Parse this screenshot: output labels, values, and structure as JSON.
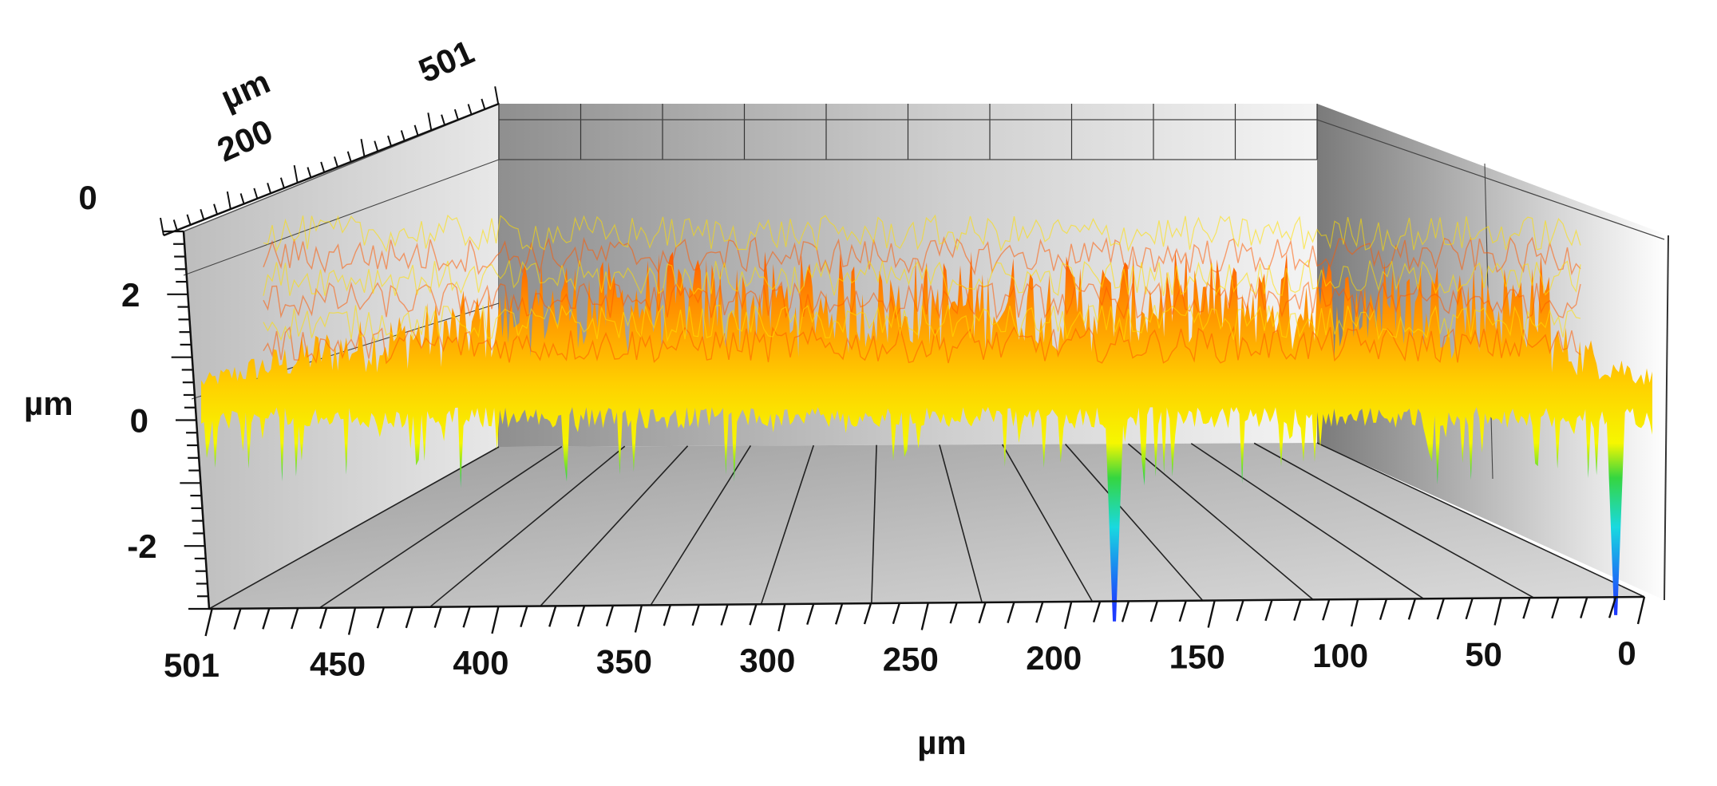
{
  "chart_data": {
    "type": "surface-3d",
    "title": "",
    "x_axis": {
      "label": "µm",
      "range": [
        0,
        501
      ],
      "tick_labels": [
        "501",
        "450",
        "400",
        "350",
        "300",
        "250",
        "200",
        "150",
        "100",
        "50",
        "0"
      ],
      "tick_values": [
        501,
        450,
        400,
        350,
        300,
        250,
        200,
        150,
        100,
        50,
        0
      ]
    },
    "y_axis": {
      "label": "µm",
      "range": [
        0,
        501
      ],
      "tick_labels": [
        "0",
        "200",
        "501"
      ],
      "tick_values": [
        0,
        200,
        501
      ]
    },
    "z_axis": {
      "label": "µm",
      "range": [
        -3,
        3
      ],
      "tick_labels": [
        "2",
        "0",
        "-2"
      ],
      "tick_values": [
        2,
        0,
        -2
      ]
    },
    "surface": {
      "mean_height": 0.4,
      "peak_height": 2.3,
      "colormap": [
        "#1e3cff",
        "#19d9e0",
        "#35d640",
        "#f6f700",
        "#ffc400",
        "#ff4a00",
        "#ffffff"
      ],
      "deep_pits": [
        {
          "x": 185,
          "depth": -3.2
        },
        {
          "x": 10,
          "depth": -3.1
        }
      ]
    },
    "grid": true
  }
}
